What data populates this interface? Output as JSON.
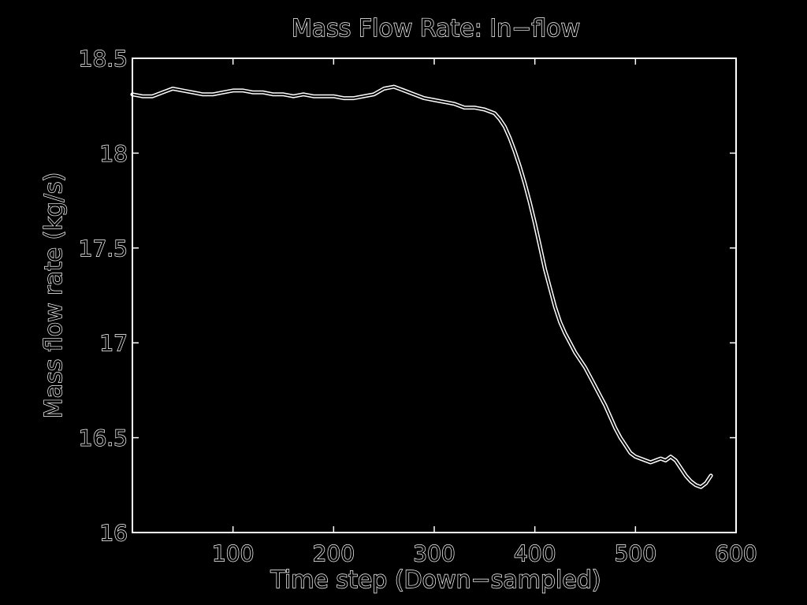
{
  "chart_data": {
    "type": "line",
    "title": "Mass Flow Rate: In−flow",
    "xlabel": "Time step (Down−sampled)",
    "ylabel": "Mass flow rate (kg/s)",
    "xlim": [
      0,
      600
    ],
    "ylim": [
      16,
      18.5
    ],
    "xticks": [
      100,
      200,
      300,
      400,
      500,
      600
    ],
    "xtick_labels": [
      "100",
      "200",
      "300",
      "400",
      "500",
      "600"
    ],
    "yticks": [
      16,
      16.5,
      17,
      17.5,
      18,
      18.5
    ],
    "ytick_labels": [
      "16",
      "16.5",
      "17",
      "17.5",
      "18",
      "18.5"
    ],
    "grid": false,
    "series": [
      {
        "x": [
          0,
          10,
          20,
          30,
          40,
          50,
          60,
          70,
          80,
          90,
          100,
          110,
          120,
          130,
          140,
          150,
          160,
          170,
          180,
          190,
          200,
          210,
          220,
          230,
          240,
          250,
          260,
          270,
          280,
          290,
          300,
          310,
          320,
          330,
          340,
          350,
          360,
          365,
          370,
          375,
          380,
          385,
          390,
          395,
          400,
          405,
          410,
          415,
          420,
          425,
          430,
          435,
          440,
          445,
          450,
          455,
          460,
          465,
          470,
          475,
          480,
          485,
          490,
          495,
          500,
          505,
          510,
          515,
          520,
          525,
          530,
          535,
          540,
          545,
          550,
          555,
          560,
          565,
          570,
          575
        ],
        "y": [
          18.31,
          18.3,
          18.3,
          18.32,
          18.34,
          18.33,
          18.32,
          18.31,
          18.31,
          18.32,
          18.33,
          18.33,
          18.32,
          18.32,
          18.31,
          18.31,
          18.3,
          18.31,
          18.3,
          18.3,
          18.3,
          18.29,
          18.29,
          18.3,
          18.31,
          18.34,
          18.35,
          18.33,
          18.31,
          18.29,
          18.28,
          18.27,
          18.26,
          18.24,
          18.24,
          18.23,
          18.21,
          18.18,
          18.14,
          18.08,
          18.01,
          17.93,
          17.84,
          17.74,
          17.63,
          17.51,
          17.39,
          17.29,
          17.19,
          17.11,
          17.05,
          17.0,
          16.95,
          16.91,
          16.87,
          16.82,
          16.77,
          16.72,
          16.67,
          16.61,
          16.55,
          16.5,
          16.46,
          16.42,
          16.4,
          16.39,
          16.38,
          16.37,
          16.38,
          16.39,
          16.38,
          16.4,
          16.38,
          16.34,
          16.3,
          16.27,
          16.25,
          16.24,
          16.26,
          16.3
        ]
      }
    ]
  }
}
